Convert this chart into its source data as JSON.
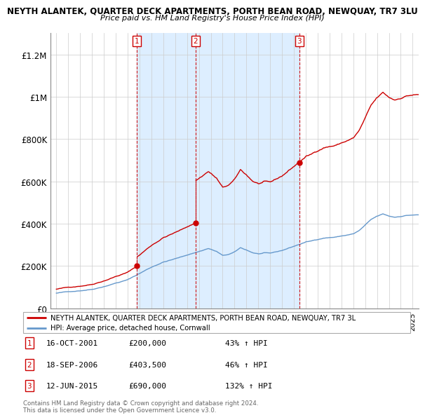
{
  "title": "NEYTH ALANTEK, QUARTER DECK APARTMENTS, PORTH BEAN ROAD, NEWQUAY, TR7 3LU",
  "subtitle": "Price paid vs. HM Land Registry's House Price Index (HPI)",
  "ylim": [
    0,
    1300000
  ],
  "yticks": [
    0,
    200000,
    400000,
    600000,
    800000,
    1000000,
    1200000
  ],
  "ytick_labels": [
    "£0",
    "£200K",
    "£400K",
    "£600K",
    "£800K",
    "£1M",
    "£1.2M"
  ],
  "property_color": "#cc0000",
  "hpi_color": "#6699cc",
  "shade_color": "#ddeeff",
  "background_color": "#ffffff",
  "grid_color": "#cccccc",
  "purchases": [
    {
      "label": "1",
      "date": 2001.79,
      "price": 200000
    },
    {
      "label": "2",
      "date": 2006.72,
      "price": 403500
    },
    {
      "label": "3",
      "date": 2015.45,
      "price": 690000
    }
  ],
  "table_rows": [
    {
      "num": "1",
      "date": "16-OCT-2001",
      "price": "£200,000",
      "change": "43% ↑ HPI"
    },
    {
      "num": "2",
      "date": "18-SEP-2006",
      "price": "£403,500",
      "change": "46% ↑ HPI"
    },
    {
      "num": "3",
      "date": "12-JUN-2015",
      "price": "£690,000",
      "change": "132% ↑ HPI"
    }
  ],
  "legend_property": "NEYTH ALANTEK, QUARTER DECK APARTMENTS, PORTH BEAN ROAD, NEWQUAY, TR7 3L",
  "legend_hpi": "HPI: Average price, detached house, Cornwall",
  "footer": "Contains HM Land Registry data © Crown copyright and database right 2024.\nThis data is licensed under the Open Government Licence v3.0.",
  "xmin": 1994.5,
  "xmax": 2025.5
}
